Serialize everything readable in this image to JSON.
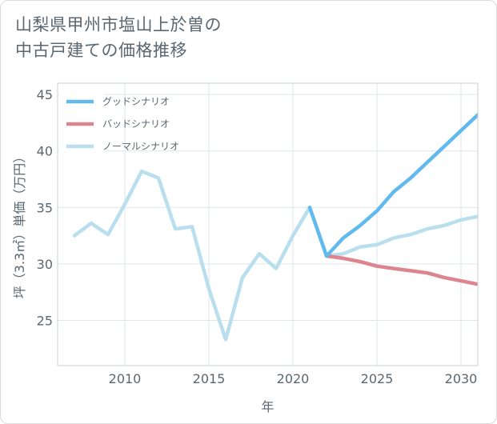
{
  "title": "山梨県甲州市塩山上於曽の\n中古戸建ての価格推移",
  "chart_data": {
    "type": "line",
    "xlabel": "年",
    "ylabel": "坪（3.3㎡）単価（万円）",
    "xlim": [
      2006,
      2031
    ],
    "ylim": [
      21,
      46
    ],
    "xticks": [
      2010,
      2015,
      2020,
      2025,
      2030
    ],
    "yticks": [
      25,
      30,
      35,
      40,
      45
    ],
    "grid": true,
    "legend_position": "top-left",
    "series": [
      {
        "name": "ノーマルシナリオ",
        "color": "#b9dfee",
        "x": [
          2007,
          2008,
          2009,
          2010,
          2011,
          2012,
          2013,
          2014,
          2015,
          2016,
          2017,
          2018,
          2019,
          2020,
          2021,
          2022,
          2023,
          2024,
          2025,
          2026,
          2027,
          2028,
          2029,
          2030,
          2031
        ],
        "values": [
          32.5,
          33.6,
          32.6,
          35.3,
          38.2,
          37.6,
          33.1,
          33.3,
          27.8,
          23.3,
          28.8,
          30.9,
          29.6,
          32.5,
          35.0,
          30.7,
          30.9,
          31.5,
          31.7,
          32.3,
          32.6,
          33.1,
          33.4,
          33.9,
          34.2
        ]
      },
      {
        "name": "バッドシナリオ",
        "color": "#de848e",
        "x": [
          2022,
          2023,
          2024,
          2025,
          2026,
          2027,
          2028,
          2029,
          2030,
          2031
        ],
        "values": [
          30.7,
          30.5,
          30.2,
          29.8,
          29.6,
          29.4,
          29.2,
          28.8,
          28.5,
          28.2
        ]
      },
      {
        "name": "グッドシナリオ",
        "color": "#62b9ee",
        "x": [
          2021,
          2022,
          2023,
          2024,
          2025,
          2026,
          2027,
          2028,
          2029,
          2030,
          2031
        ],
        "values": [
          35.0,
          30.7,
          32.3,
          33.4,
          34.7,
          36.4,
          37.6,
          39.0,
          40.4,
          41.8,
          43.2
        ]
      }
    ],
    "legend": [
      "グッドシナリオ",
      "バッドシナリオ",
      "ノーマルシナリオ"
    ]
  }
}
